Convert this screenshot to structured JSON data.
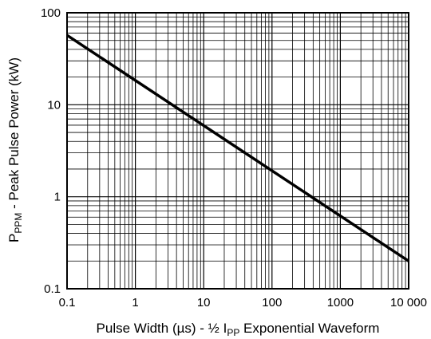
{
  "chart_data": {
    "type": "line",
    "title": "",
    "xlabel_parts": {
      "pre": "Pulse Width (µs) - ½ I",
      "sub": "PP",
      "post": " Exponential Waveform"
    },
    "ylabel_parts": {
      "pre": "P",
      "sub": "PPM",
      "post": " - Peak Pulse Power (kW)"
    },
    "x_scale": "log",
    "y_scale": "log",
    "xlim": [
      0.1,
      10000
    ],
    "ylim": [
      0.1,
      100
    ],
    "x_ticks": [
      {
        "value": 0.1,
        "label": "0.1"
      },
      {
        "value": 1,
        "label": "1"
      },
      {
        "value": 10,
        "label": "10"
      },
      {
        "value": 100,
        "label": "100"
      },
      {
        "value": 1000,
        "label": "1000"
      },
      {
        "value": 10000,
        "label": "10 000"
      }
    ],
    "y_ticks": [
      {
        "value": 0.1,
        "label": "0.1"
      },
      {
        "value": 1,
        "label": "1"
      },
      {
        "value": 10,
        "label": "10"
      },
      {
        "value": 100,
        "label": "100"
      }
    ],
    "grid": true,
    "series": [
      {
        "color": "#000000",
        "x": [
          0.1,
          10000
        ],
        "y": [
          57,
          0.2
        ]
      }
    ]
  }
}
